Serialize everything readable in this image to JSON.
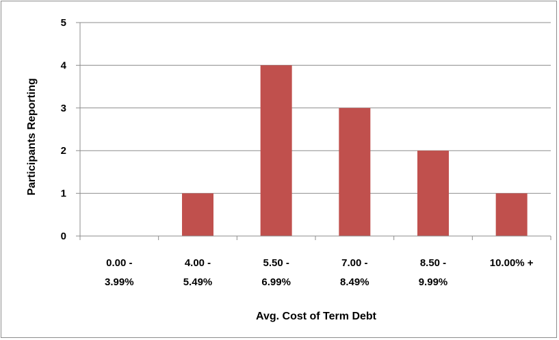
{
  "chart_data": {
    "type": "bar",
    "categories": [
      [
        "0.00 -",
        "3.99%"
      ],
      [
        "4.00 -",
        "5.49%"
      ],
      [
        "5.50 -",
        "6.99%"
      ],
      [
        "7.00 -",
        "8.49%"
      ],
      [
        "8.50 -",
        "9.99%"
      ],
      [
        "10.00% +"
      ]
    ],
    "values": [
      0,
      1,
      4,
      3,
      2,
      1
    ],
    "xlabel": "Avg. Cost of Term Debt",
    "ylabel": "Participants Reporting",
    "ylim": [
      0,
      5
    ],
    "yticks": [
      "0",
      "1",
      "2",
      "3",
      "4",
      "5"
    ],
    "grid": "horizontal",
    "legend": "none",
    "bar_color": "#c0504d",
    "grid_color": "#8c8c8c"
  }
}
